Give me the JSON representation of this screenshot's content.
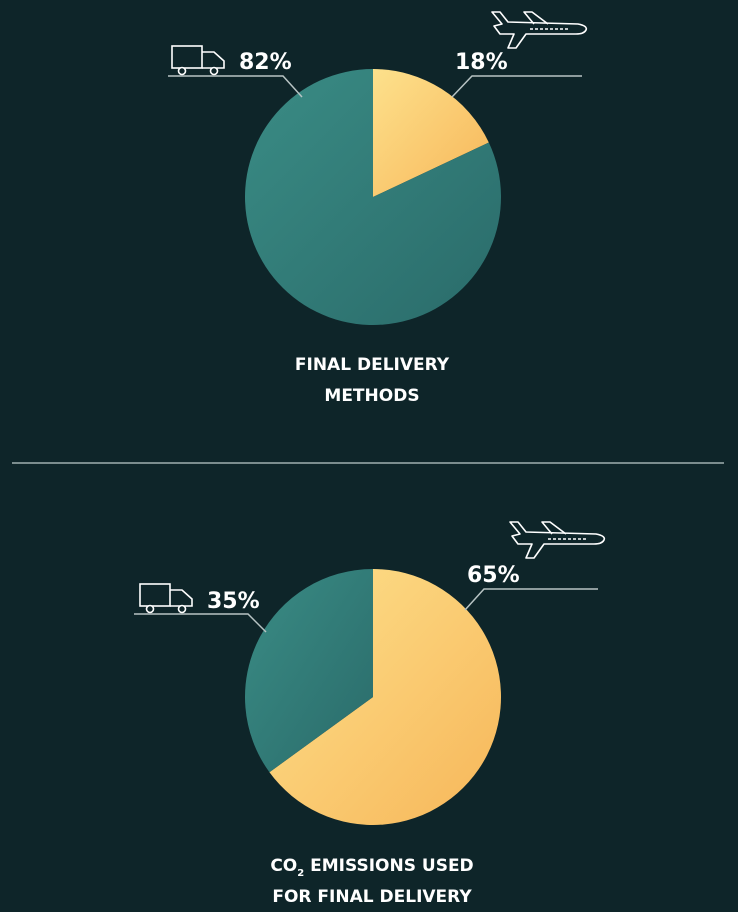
{
  "colors": {
    "background": "#0e2529",
    "teal": "#2f7774",
    "teal_light": "#3a8c85",
    "yellow": "#fdd380",
    "yellow_dark": "#f7b659",
    "line": "#b8c4c4",
    "icon": "#ffffff"
  },
  "icons": {
    "truck": "truck-icon",
    "plane": "airplane-icon"
  },
  "chart_data": [
    {
      "type": "pie",
      "categories": [
        "Air",
        "Road"
      ],
      "values": [
        18,
        82
      ],
      "labels": [
        "18%",
        "82%"
      ],
      "title_lines": [
        "FINAL DELIVERY",
        "METHODS"
      ]
    },
    {
      "type": "pie",
      "categories": [
        "Air",
        "Road"
      ],
      "values": [
        65,
        35
      ],
      "labels": [
        "65%",
        "35%"
      ],
      "title_prefix": "CO",
      "title_subscript": "2",
      "title_line1_rest": " EMISSIONS USED",
      "title_line2": "FOR FINAL DELIVERY"
    }
  ]
}
